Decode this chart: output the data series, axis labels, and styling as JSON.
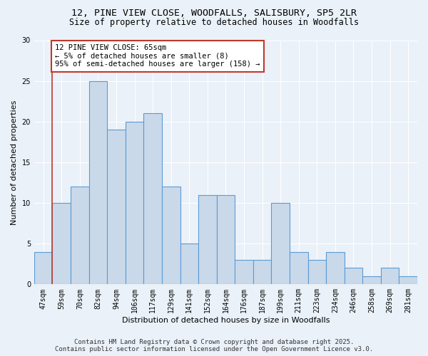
{
  "title_line1": "12, PINE VIEW CLOSE, WOODFALLS, SALISBURY, SP5 2LR",
  "title_line2": "Size of property relative to detached houses in Woodfalls",
  "xlabel": "Distribution of detached houses by size in Woodfalls",
  "ylabel": "Number of detached properties",
  "categories": [
    "47sqm",
    "59sqm",
    "70sqm",
    "82sqm",
    "94sqm",
    "106sqm",
    "117sqm",
    "129sqm",
    "141sqm",
    "152sqm",
    "164sqm",
    "176sqm",
    "187sqm",
    "199sqm",
    "211sqm",
    "223sqm",
    "234sqm",
    "246sqm",
    "258sqm",
    "269sqm",
    "281sqm"
  ],
  "values": [
    4,
    10,
    12,
    25,
    19,
    20,
    21,
    12,
    5,
    11,
    11,
    3,
    3,
    10,
    4,
    3,
    4,
    2,
    1,
    2,
    1
  ],
  "bar_color": "#c9d9ea",
  "bar_edge_color": "#5b9bd5",
  "bar_edge_width": 0.8,
  "vline_x_index": 1,
  "vline_color": "#c0392b",
  "annotation_text": "12 PINE VIEW CLOSE: 65sqm\n← 5% of detached houses are smaller (8)\n95% of semi-detached houses are larger (158) →",
  "annotation_box_color": "white",
  "annotation_box_edgecolor": "#c0392b",
  "ylim": [
    0,
    30
  ],
  "yticks": [
    0,
    5,
    10,
    15,
    20,
    25,
    30
  ],
  "footer_line1": "Contains HM Land Registry data © Crown copyright and database right 2025.",
  "footer_line2": "Contains public sector information licensed under the Open Government Licence v3.0.",
  "bg_color": "#eaf1f8",
  "plot_bg_color": "#eaf1f8",
  "title_fontsize": 9.5,
  "subtitle_fontsize": 8.5,
  "axis_label_fontsize": 8,
  "tick_fontsize": 7,
  "footer_fontsize": 6.5,
  "annotation_fontsize": 7.5
}
